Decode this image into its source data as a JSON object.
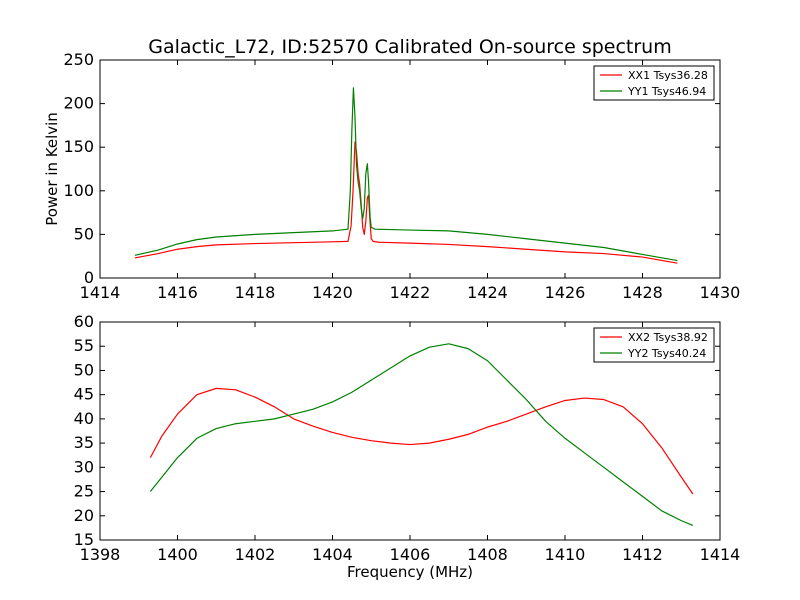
{
  "title": "Galactic_L72, ID:52570 Calibrated On-source spectrum",
  "chart_data": [
    {
      "type": "line",
      "ylabel": "Power in Kelvin",
      "xlabel": "",
      "xlim": [
        1414,
        1430
      ],
      "ylim": [
        0,
        250
      ],
      "xticks": [
        "1414",
        "1416",
        "1418",
        "1420",
        "1422",
        "1424",
        "1426",
        "1428",
        "1430"
      ],
      "yticks": [
        "0",
        "50",
        "100",
        "150",
        "200",
        "250"
      ],
      "grid": false,
      "legend_position": "top-right",
      "series": [
        {
          "name": "XX1 Tsys36.28",
          "color": "#ff0000",
          "points": [
            [
              1414.9,
              23
            ],
            [
              1415.5,
              28
            ],
            [
              1416,
              33
            ],
            [
              1416.5,
              36
            ],
            [
              1417,
              38
            ],
            [
              1418,
              39.5
            ],
            [
              1419,
              40.5
            ],
            [
              1420,
              41.5
            ],
            [
              1420.4,
              42
            ],
            [
              1420.48,
              60
            ],
            [
              1420.53,
              100
            ],
            [
              1420.58,
              156
            ],
            [
              1420.62,
              145
            ],
            [
              1420.66,
              120
            ],
            [
              1420.7,
              108
            ],
            [
              1420.74,
              85
            ],
            [
              1420.78,
              58
            ],
            [
              1420.82,
              50
            ],
            [
              1420.86,
              65
            ],
            [
              1420.9,
              92
            ],
            [
              1420.93,
              95
            ],
            [
              1420.96,
              70
            ],
            [
              1421,
              45
            ],
            [
              1421.05,
              42
            ],
            [
              1421.2,
              41
            ],
            [
              1422,
              40
            ],
            [
              1423,
              38.5
            ],
            [
              1424,
              36
            ],
            [
              1425,
              33
            ],
            [
              1426,
              30
            ],
            [
              1427,
              28
            ],
            [
              1428,
              24
            ],
            [
              1428.9,
              17
            ]
          ]
        },
        {
          "name": "YY1 Tsys46.94",
          "color": "#008000",
          "points": [
            [
              1414.9,
              26
            ],
            [
              1415.5,
              32
            ],
            [
              1416,
              39
            ],
            [
              1416.5,
              44
            ],
            [
              1417,
              47
            ],
            [
              1418,
              50
            ],
            [
              1419,
              52
            ],
            [
              1420,
              54
            ],
            [
              1420.4,
              56
            ],
            [
              1420.46,
              100
            ],
            [
              1420.5,
              170
            ],
            [
              1420.54,
              218
            ],
            [
              1420.58,
              185
            ],
            [
              1420.62,
              130
            ],
            [
              1420.66,
              110
            ],
            [
              1420.7,
              100
            ],
            [
              1420.74,
              80
            ],
            [
              1420.78,
              68
            ],
            [
              1420.82,
              80
            ],
            [
              1420.86,
              120
            ],
            [
              1420.9,
              131
            ],
            [
              1420.93,
              110
            ],
            [
              1420.97,
              70
            ],
            [
              1421,
              58
            ],
            [
              1421.1,
              56
            ],
            [
              1422,
              55
            ],
            [
              1423,
              54
            ],
            [
              1424,
              50
            ],
            [
              1425,
              45
            ],
            [
              1426,
              40
            ],
            [
              1427,
              35
            ],
            [
              1428,
              27
            ],
            [
              1428.9,
              20
            ]
          ]
        }
      ]
    },
    {
      "type": "line",
      "ylabel": "",
      "xlabel": "Frequency (MHz)",
      "xlim": [
        1398,
        1414
      ],
      "ylim": [
        15,
        60
      ],
      "xticks": [
        "1398",
        "1400",
        "1402",
        "1404",
        "1406",
        "1408",
        "1410",
        "1412",
        "1414"
      ],
      "yticks": [
        "15",
        "20",
        "25",
        "30",
        "35",
        "40",
        "45",
        "50",
        "55",
        "60"
      ],
      "grid": false,
      "legend_position": "top-right",
      "series": [
        {
          "name": "XX2 Tsys38.92",
          "color": "#ff0000",
          "points": [
            [
              1399.3,
              32
            ],
            [
              1399.6,
              36.5
            ],
            [
              1400,
              41
            ],
            [
              1400.5,
              45
            ],
            [
              1401,
              46.3
            ],
            [
              1401.5,
              46
            ],
            [
              1402,
              44.5
            ],
            [
              1402.5,
              42.5
            ],
            [
              1403,
              40
            ],
            [
              1403.5,
              38.5
            ],
            [
              1404,
              37.2
            ],
            [
              1404.5,
              36.2
            ],
            [
              1405,
              35.5
            ],
            [
              1405.5,
              35
            ],
            [
              1406,
              34.7
            ],
            [
              1406.5,
              35
            ],
            [
              1407,
              35.8
            ],
            [
              1407.5,
              36.8
            ],
            [
              1408,
              38.3
            ],
            [
              1408.5,
              39.5
            ],
            [
              1409,
              41
            ],
            [
              1409.5,
              42.5
            ],
            [
              1410,
              43.8
            ],
            [
              1410.5,
              44.3
            ],
            [
              1411,
              44
            ],
            [
              1411.5,
              42.5
            ],
            [
              1412,
              39
            ],
            [
              1412.5,
              34
            ],
            [
              1413,
              28
            ],
            [
              1413.3,
              24.5
            ]
          ]
        },
        {
          "name": "YY2 Tsys40.24",
          "color": "#008000",
          "points": [
            [
              1399.3,
              25
            ],
            [
              1399.6,
              28
            ],
            [
              1400,
              32
            ],
            [
              1400.5,
              36
            ],
            [
              1401,
              38
            ],
            [
              1401.5,
              39
            ],
            [
              1402,
              39.5
            ],
            [
              1402.5,
              40
            ],
            [
              1403,
              41
            ],
            [
              1403.5,
              42
            ],
            [
              1404,
              43.5
            ],
            [
              1404.5,
              45.5
            ],
            [
              1405,
              48
            ],
            [
              1405.5,
              50.5
            ],
            [
              1406,
              53
            ],
            [
              1406.5,
              54.8
            ],
            [
              1407,
              55.5
            ],
            [
              1407.5,
              54.5
            ],
            [
              1408,
              52
            ],
            [
              1408.5,
              48
            ],
            [
              1409,
              44
            ],
            [
              1409.5,
              39.5
            ],
            [
              1410,
              36
            ],
            [
              1410.5,
              33
            ],
            [
              1411,
              30
            ],
            [
              1411.5,
              27
            ],
            [
              1412,
              24
            ],
            [
              1412.5,
              21
            ],
            [
              1413,
              19
            ],
            [
              1413.3,
              18
            ]
          ]
        }
      ]
    }
  ]
}
